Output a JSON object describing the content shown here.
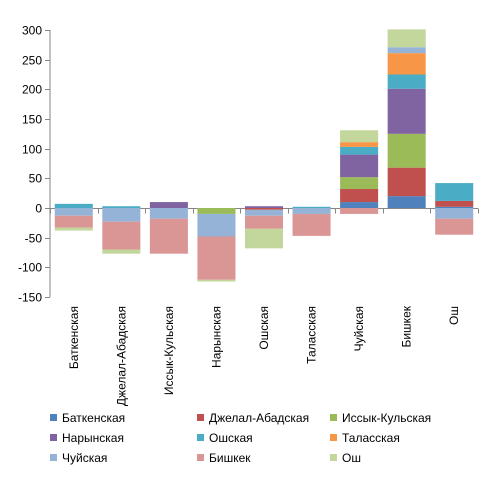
{
  "chart_data": {
    "type": "bar",
    "stacked": true,
    "categories": [
      "Баткенская",
      "Джелал-Абадская",
      "Иссык-Кульская",
      "Нарынская",
      "Ошская",
      "Таласская",
      "Чуйская",
      "Бишкек",
      "Ош"
    ],
    "series": [
      {
        "name": "Баткенская",
        "color": "#4F81BD",
        "values": [
          0,
          0,
          0,
          0,
          0,
          0,
          10,
          20,
          2
        ]
      },
      {
        "name": "Джелал-Абадская",
        "color": "#C0504D",
        "values": [
          0,
          0,
          0,
          0,
          -3,
          0,
          22,
          48,
          10
        ]
      },
      {
        "name": "Иссык-Кульская",
        "color": "#9BBB59",
        "values": [
          0,
          0,
          0,
          -10,
          0,
          0,
          20,
          57,
          0
        ]
      },
      {
        "name": "Нарынская",
        "color": "#8064A2",
        "values": [
          0,
          0,
          10,
          0,
          3,
          0,
          38,
          76,
          0
        ]
      },
      {
        "name": "Ошская",
        "color": "#4BACC6",
        "values": [
          7,
          3,
          0,
          0,
          0,
          2,
          13,
          24,
          30
        ]
      },
      {
        "name": "Таласская",
        "color": "#F79646",
        "values": [
          0,
          0,
          0,
          0,
          0,
          0,
          8,
          36,
          0
        ]
      },
      {
        "name": "Чуйская",
        "color": "#95B3D7",
        "values": [
          -13,
          -23,
          -18,
          -38,
          -10,
          -10,
          0,
          10,
          -18
        ]
      },
      {
        "name": "Бишкек",
        "color": "#DA9694",
        "values": [
          -20,
          -47,
          -59,
          -73,
          -22,
          -37,
          -10,
          0,
          -27
        ]
      },
      {
        "name": "Ош",
        "color": "#C3D69B",
        "values": [
          -5,
          -7,
          0,
          -3,
          -33,
          0,
          20,
          30,
          0
        ]
      }
    ],
    "ylim": [
      -150,
      300
    ],
    "yticks": [
      "-150",
      "-100",
      "-50",
      "0",
      "50",
      "100",
      "150",
      "200",
      "250",
      "300"
    ],
    "grid": false,
    "legend_position": "bottom"
  }
}
